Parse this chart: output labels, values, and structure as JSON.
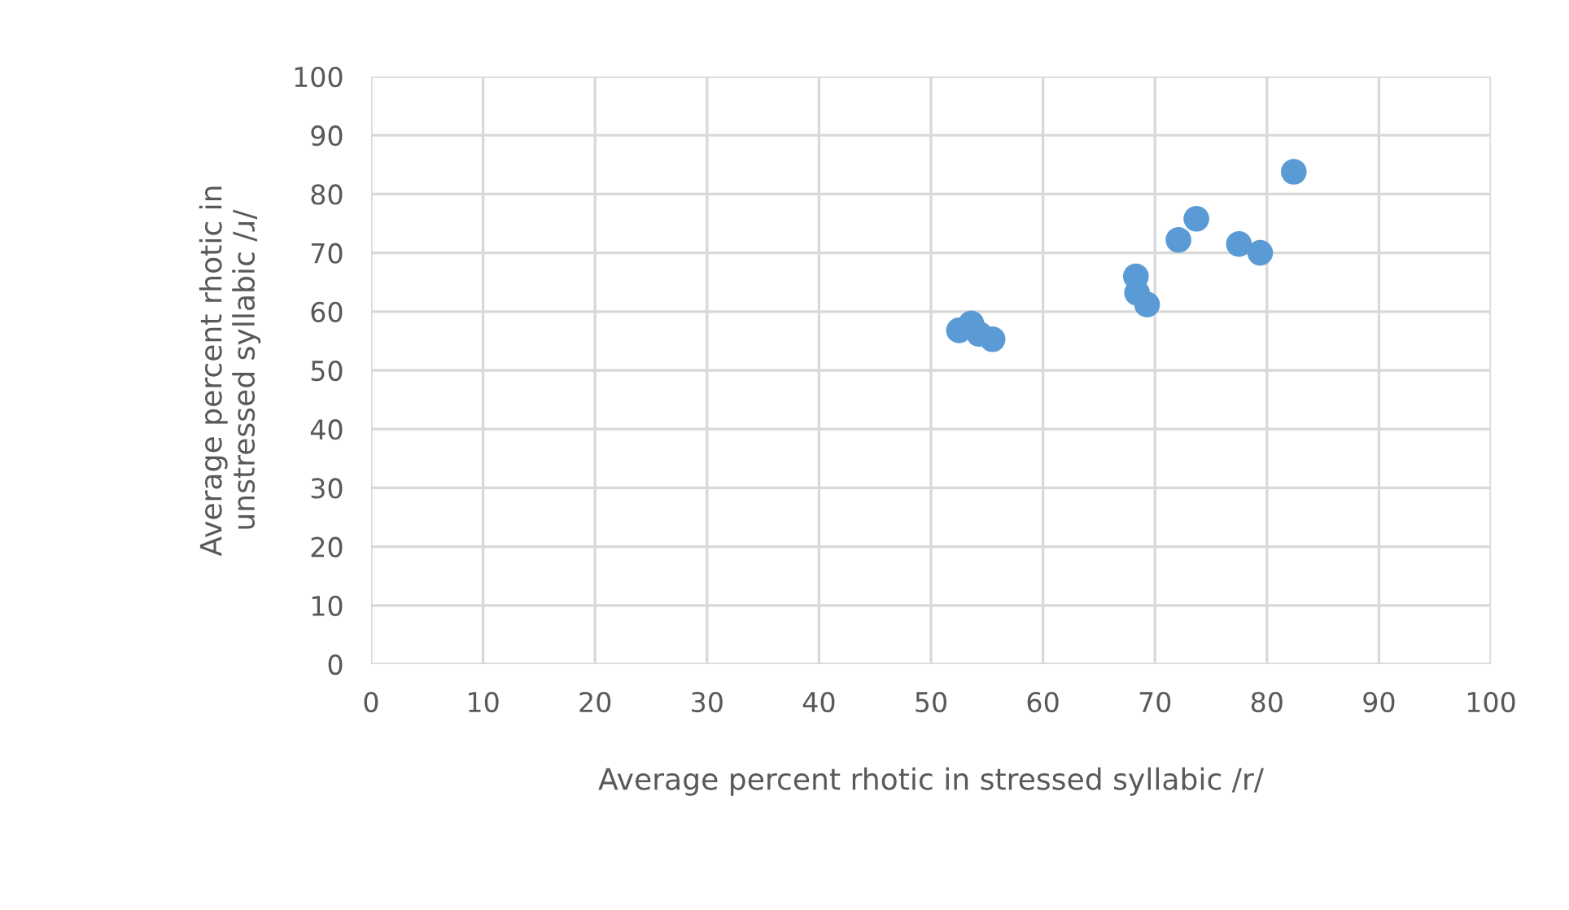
{
  "chart_data": {
    "type": "scatter",
    "xlabel": "Average percent rhotic in stressed syllabic /r/",
    "ylabel": "Average percent rhotic in\nunstressed syllabic /ɹ/",
    "series": [
      {
        "color": "#5b9bd5",
        "x": [
          52.5,
          53.6,
          54.3,
          55.5,
          68.3,
          68.4,
          69.3,
          72.1,
          73.7,
          77.5,
          79.4,
          82.4
        ],
        "values": [
          56.8,
          58,
          56.2,
          55.3,
          66,
          63.2,
          61.2,
          72.2,
          75.8,
          71.5,
          70,
          83.8
        ]
      }
    ],
    "xlim": [
      0,
      100
    ],
    "ylim": [
      0,
      100
    ],
    "xticks": [
      0,
      10,
      20,
      30,
      40,
      50,
      60,
      70,
      80,
      90,
      100
    ],
    "yticks": [
      0,
      10,
      20,
      30,
      40,
      50,
      60,
      70,
      80,
      90,
      100
    ],
    "grid": true,
    "marker": "circle",
    "legend": false
  }
}
